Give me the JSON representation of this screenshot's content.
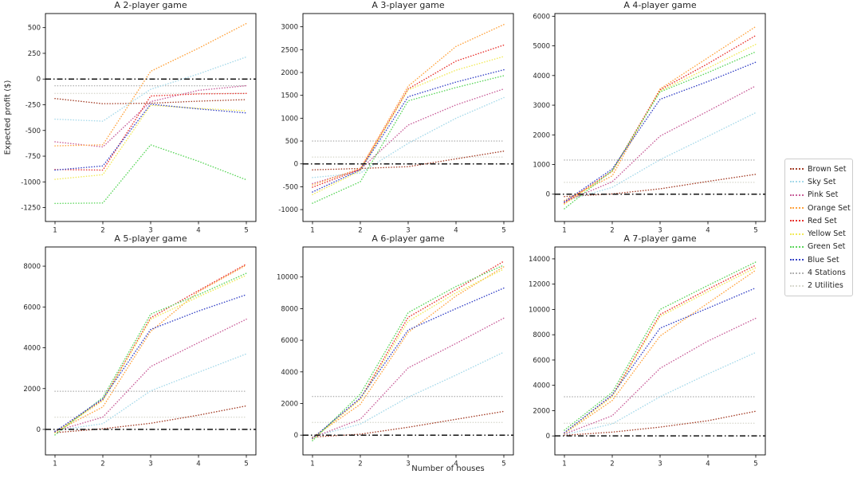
{
  "figure": {
    "background": "#ffffff"
  },
  "ylabel": "Expected profit ($)",
  "xlabel": "Number of houses",
  "legend": {
    "position": "right",
    "items": [
      {
        "label": "Brown Set",
        "color": "#a5402a"
      },
      {
        "label": "Sky Set",
        "color": "#a6d9ea"
      },
      {
        "label": "Pink Set",
        "color": "#c9609b"
      },
      {
        "label": "Orange Set",
        "color": "#ffa33e"
      },
      {
        "label": "Red Set",
        "color": "#e8322e"
      },
      {
        "label": "Yellow Set",
        "color": "#f1ea5a"
      },
      {
        "label": "Green Set",
        "color": "#5cd65c"
      },
      {
        "label": "Blue Set",
        "color": "#3744c7"
      },
      {
        "label": "4 Stations",
        "color": "#b3b3b3"
      },
      {
        "label": "2 Utilities",
        "color": "#d9d9cf"
      }
    ]
  },
  "zero_line": {
    "value": 0,
    "style": "dashdot",
    "color": "#111111"
  },
  "line_style": "dotted",
  "chart_data": [
    {
      "type": "line",
      "title": "A 2-player game",
      "x": [
        1,
        2,
        3,
        4,
        5
      ],
      "xticks": [
        1,
        2,
        3,
        4,
        5
      ],
      "xlim": [
        0.8,
        5.2
      ],
      "ylim": [
        -1385,
        637
      ],
      "yticks": [
        500,
        250,
        0,
        -250,
        -500,
        -750,
        -1000,
        -1250
      ],
      "grid": false,
      "series": [
        {
          "name": "Brown Set",
          "values": [
            -190,
            -240,
            -235,
            -215,
            -200
          ]
        },
        {
          "name": "Sky Set",
          "values": [
            -390,
            -410,
            -100,
            50,
            215
          ]
        },
        {
          "name": "Pink Set",
          "values": [
            -610,
            -660,
            -220,
            -110,
            -65
          ]
        },
        {
          "name": "Orange Set",
          "values": [
            -650,
            -640,
            75,
            300,
            540
          ]
        },
        {
          "name": "Red Set",
          "values": [
            -880,
            -885,
            -165,
            -145,
            -140
          ]
        },
        {
          "name": "Yellow Set",
          "values": [
            -975,
            -930,
            -255,
            -285,
            -310
          ]
        },
        {
          "name": "Green Set",
          "values": [
            -1210,
            -1205,
            -640,
            -800,
            -980
          ]
        },
        {
          "name": "Blue Set",
          "values": [
            -885,
            -845,
            -245,
            -290,
            -330
          ]
        },
        {
          "name": "4 Stations",
          "values": [
            -65,
            -65,
            -65,
            -65,
            -65
          ]
        },
        {
          "name": "2 Utilities",
          "values": [
            -140,
            -140,
            -140,
            -140,
            -140
          ]
        }
      ]
    },
    {
      "type": "line",
      "title": "A 3-player game",
      "x": [
        1,
        2,
        3,
        4,
        5
      ],
      "xticks": [
        1,
        2,
        3,
        4,
        5
      ],
      "xlim": [
        0.8,
        5.2
      ],
      "ylim": [
        -1260,
        3290
      ],
      "yticks": [
        3000,
        2500,
        2000,
        1500,
        1000,
        500,
        0,
        -500,
        -1000
      ],
      "grid": false,
      "series": [
        {
          "name": "Brown Set",
          "values": [
            -130,
            -100,
            -60,
            110,
            280
          ]
        },
        {
          "name": "Sky Set",
          "values": [
            -300,
            -200,
            450,
            1000,
            1450
          ]
        },
        {
          "name": "Pink Set",
          "values": [
            -430,
            -120,
            850,
            1290,
            1640
          ]
        },
        {
          "name": "Orange Set",
          "values": [
            -460,
            -100,
            1700,
            2570,
            3050
          ]
        },
        {
          "name": "Red Set",
          "values": [
            -510,
            -120,
            1640,
            2250,
            2600
          ]
        },
        {
          "name": "Yellow Set",
          "values": [
            -670,
            -150,
            1620,
            2050,
            2350
          ]
        },
        {
          "name": "Green Set",
          "values": [
            -860,
            -390,
            1380,
            1670,
            1930
          ]
        },
        {
          "name": "Blue Set",
          "values": [
            -615,
            -130,
            1470,
            1790,
            2060
          ]
        },
        {
          "name": "4 Stations",
          "values": [
            500,
            500,
            500,
            500,
            500
          ]
        },
        {
          "name": "2 Utilities",
          "values": [
            150,
            150,
            150,
            150,
            150
          ]
        }
      ]
    },
    {
      "type": "line",
      "title": "A 4-player game",
      "x": [
        1,
        2,
        3,
        4,
        5
      ],
      "xticks": [
        1,
        2,
        3,
        4,
        5
      ],
      "xlim": [
        0.8,
        5.2
      ],
      "ylim": [
        -920,
        6090
      ],
      "yticks": [
        6000,
        5000,
        4000,
        3000,
        2000,
        1000,
        0
      ],
      "grid": false,
      "series": [
        {
          "name": "Brown Set",
          "values": [
            -80,
            10,
            180,
            430,
            670
          ]
        },
        {
          "name": "Sky Set",
          "values": [
            -230,
            230,
            1165,
            1950,
            2750
          ]
        },
        {
          "name": "Pink Set",
          "values": [
            -260,
            420,
            1960,
            2800,
            3650
          ]
        },
        {
          "name": "Orange Set",
          "values": [
            -210,
            620,
            3550,
            4600,
            5650
          ]
        },
        {
          "name": "Red Set",
          "values": [
            -300,
            780,
            3520,
            4400,
            5350
          ]
        },
        {
          "name": "Yellow Set",
          "values": [
            -340,
            760,
            3480,
            4250,
            5050
          ]
        },
        {
          "name": "Green Set",
          "values": [
            -490,
            800,
            3450,
            4100,
            4800
          ]
        },
        {
          "name": "Blue Set",
          "values": [
            -260,
            850,
            3200,
            3800,
            4450
          ]
        },
        {
          "name": "4 Stations",
          "values": [
            1150,
            1150,
            1150,
            1150,
            1150
          ]
        },
        {
          "name": "2 Utilities",
          "values": [
            400,
            400,
            400,
            400,
            400
          ]
        }
      ]
    },
    {
      "type": "line",
      "title": "A 5-player game",
      "x": [
        1,
        2,
        3,
        4,
        5
      ],
      "xticks": [
        1,
        2,
        3,
        4,
        5
      ],
      "xlim": [
        0.8,
        5.2
      ],
      "ylim": [
        -1250,
        8940
      ],
      "yticks": [
        8000,
        6000,
        4000,
        2000,
        0
      ],
      "grid": false,
      "series": [
        {
          "name": "Brown Set",
          "values": [
            -160,
            30,
            300,
            700,
            1150
          ]
        },
        {
          "name": "Sky Set",
          "values": [
            -60,
            280,
            1890,
            2800,
            3700
          ]
        },
        {
          "name": "Pink Set",
          "values": [
            -90,
            600,
            3080,
            4250,
            5400
          ]
        },
        {
          "name": "Orange Set",
          "values": [
            -120,
            1100,
            4800,
            6750,
            8050
          ]
        },
        {
          "name": "Red Set",
          "values": [
            -140,
            1450,
            5470,
            6800,
            8100
          ]
        },
        {
          "name": "Yellow Set",
          "values": [
            -170,
            1400,
            5400,
            6500,
            7550
          ]
        },
        {
          "name": "Green Set",
          "values": [
            -270,
            1560,
            5650,
            6600,
            7650
          ]
        },
        {
          "name": "Blue Set",
          "values": [
            -110,
            1500,
            4900,
            5800,
            6600
          ]
        },
        {
          "name": "4 Stations",
          "values": [
            1870,
            1870,
            1870,
            1870,
            1870
          ]
        },
        {
          "name": "2 Utilities",
          "values": [
            600,
            600,
            600,
            600,
            600
          ]
        }
      ]
    },
    {
      "type": "line",
      "title": "A 6-player game",
      "x": [
        1,
        2,
        3,
        4,
        5
      ],
      "xticks": [
        1,
        2,
        3,
        4,
        5
      ],
      "xlim": [
        0.8,
        5.2
      ],
      "ylim": [
        -1250,
        11900
      ],
      "yticks": [
        10000,
        8000,
        6000,
        4000,
        2000,
        0
      ],
      "grid": false,
      "series": [
        {
          "name": "Brown Set",
          "values": [
            -120,
            60,
            500,
            1000,
            1500
          ]
        },
        {
          "name": "Sky Set",
          "values": [
            -100,
            700,
            2400,
            3800,
            5250
          ]
        },
        {
          "name": "Pink Set",
          "values": [
            -150,
            1000,
            4250,
            5800,
            7400
          ]
        },
        {
          "name": "Orange Set",
          "values": [
            -150,
            1950,
            6500,
            8800,
            10650
          ]
        },
        {
          "name": "Red Set",
          "values": [
            -200,
            2300,
            7450,
            9200,
            11000
          ]
        },
        {
          "name": "Yellow Set",
          "values": [
            -250,
            2250,
            7200,
            9000,
            10500
          ]
        },
        {
          "name": "Green Set",
          "values": [
            -350,
            2600,
            7750,
            9400,
            10750
          ]
        },
        {
          "name": "Blue Set",
          "values": [
            -200,
            2350,
            6650,
            8000,
            9300
          ]
        },
        {
          "name": "4 Stations",
          "values": [
            2450,
            2450,
            2450,
            2450,
            2450
          ]
        },
        {
          "name": "2 Utilities",
          "values": [
            800,
            800,
            800,
            800,
            800
          ]
        }
      ]
    },
    {
      "type": "line",
      "title": "A 7-player game",
      "x": [
        1,
        2,
        3,
        4,
        5
      ],
      "xticks": [
        1,
        2,
        3,
        4,
        5
      ],
      "xlim": [
        0.8,
        5.2
      ],
      "ylim": [
        -1500,
        14940
      ],
      "yticks": [
        14000,
        12000,
        10000,
        8000,
        6000,
        4000,
        2000,
        0
      ],
      "grid": false,
      "series": [
        {
          "name": "Brown Set",
          "values": [
            50,
            300,
            700,
            1200,
            1950
          ]
        },
        {
          "name": "Sky Set",
          "values": [
            100,
            950,
            3100,
            4900,
            6600
          ]
        },
        {
          "name": "Pink Set",
          "values": [
            150,
            1600,
            5350,
            7500,
            9300
          ]
        },
        {
          "name": "Orange Set",
          "values": [
            200,
            2800,
            7900,
            10500,
            13100
          ]
        },
        {
          "name": "Red Set",
          "values": [
            250,
            3200,
            9600,
            11600,
            13500
          ]
        },
        {
          "name": "Yellow Set",
          "values": [
            200,
            3100,
            9450,
            11400,
            13300
          ]
        },
        {
          "name": "Green Set",
          "values": [
            450,
            3450,
            10000,
            11900,
            13750
          ]
        },
        {
          "name": "Blue Set",
          "values": [
            250,
            3250,
            8520,
            10100,
            11700
          ]
        },
        {
          "name": "4 Stations",
          "values": [
            3100,
            3100,
            3100,
            3100,
            3100
          ]
        },
        {
          "name": "2 Utilities",
          "values": [
            1000,
            1000,
            1000,
            1000,
            1000
          ]
        }
      ]
    }
  ]
}
